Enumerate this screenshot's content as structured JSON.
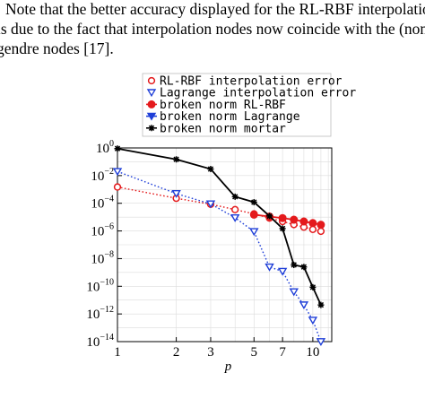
{
  "paragraph": {
    "lines": [
      "Note that the better accuracy displayed for the RL-RBF interpolation",
      "is due to the fact that interpolation nodes now coincide with the (non",
      "gendre nodes [17]."
    ]
  },
  "chart_data": {
    "type": "line",
    "xscale": "log",
    "yscale": "log",
    "xlabel": "p",
    "ylabel": "",
    "xlim": [
      1,
      12.5
    ],
    "ylim": [
      1e-14,
      1
    ],
    "xticks": [
      1,
      2,
      3,
      5,
      7,
      10
    ],
    "xtick_labels": [
      "1",
      "2",
      "3",
      "5",
      "7",
      "10"
    ],
    "yticks": [
      1,
      0.01,
      0.0001,
      1e-06,
      1e-08,
      1e-10,
      1e-12,
      1e-14
    ],
    "ytick_labels": [
      {
        "base": "10",
        "exp": "0"
      },
      {
        "base": "10",
        "exp": "−2"
      },
      {
        "base": "10",
        "exp": "−4"
      },
      {
        "base": "10",
        "exp": "−6"
      },
      {
        "base": "10",
        "exp": "−8"
      },
      {
        "base": "10",
        "exp": "−10"
      },
      {
        "base": "10",
        "exp": "−12"
      },
      {
        "base": "10",
        "exp": "−14"
      }
    ],
    "grid": true,
    "legend_position": "top",
    "series": [
      {
        "name": "RL-RBF interpolation error",
        "color": "#e41a1c",
        "linestyle": "dotted",
        "marker": "open-circle",
        "x": [
          1,
          2,
          3,
          4,
          5,
          6,
          7,
          8,
          9,
          10,
          11
        ],
        "y": [
          0.0015,
          0.00023,
          8.5e-05,
          3.5e-05,
          1.7e-05,
          8.5e-06,
          4.8e-06,
          2.9e-06,
          1.9e-06,
          1.3e-06,
          9.5e-07
        ]
      },
      {
        "name": "Lagrange interpolation error",
        "color": "#1f3fd8",
        "linestyle": "dotted",
        "marker": "triangle-down",
        "x": [
          1,
          2,
          3,
          4,
          5,
          6,
          7,
          8,
          9,
          10,
          11
        ],
        "y": [
          0.02,
          0.0005,
          9e-05,
          9e-06,
          9e-07,
          2.5e-09,
          1.2e-09,
          4e-11,
          4.5e-12,
          3.5e-13,
          1e-14
        ]
      },
      {
        "name": "broken norm RL-RBF",
        "color": "#e41a1c",
        "linestyle": "solid",
        "marker": "filled-circle",
        "x": [
          5,
          6,
          7,
          8,
          9,
          10,
          11
        ],
        "y": [
          1.5e-05,
          1.1e-05,
          8.5e-06,
          6.5e-06,
          4.8e-06,
          3.7e-06,
          2.8e-06
        ]
      },
      {
        "name": "broken norm Lagrange",
        "color": "#1f3fd8",
        "linestyle": "solid",
        "marker": "filled-triangle-down",
        "x": [],
        "y": []
      },
      {
        "name": "broken norm mortar",
        "color": "#000000",
        "linestyle": "solid",
        "marker": "star",
        "x": [
          1,
          2,
          3,
          4,
          5,
          6,
          7,
          8,
          9,
          10,
          11
        ],
        "y": [
          0.9,
          0.15,
          0.03,
          0.0003,
          0.00012,
          1.2e-05,
          1.5e-06,
          3.5e-09,
          2.5e-09,
          8.5e-11,
          4.5e-12
        ]
      }
    ]
  }
}
